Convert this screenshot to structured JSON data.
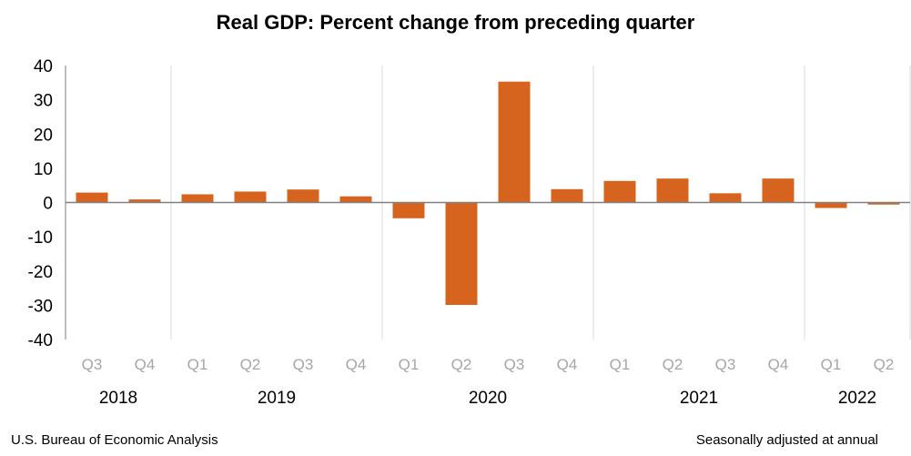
{
  "chart_data": {
    "type": "bar",
    "title": "Real GDP:  Percent change from preceding quarter",
    "categories": [
      "Q3",
      "Q4",
      "Q1",
      "Q2",
      "Q3",
      "Q4",
      "Q1",
      "Q2",
      "Q3",
      "Q4",
      "Q1",
      "Q2",
      "Q3",
      "Q4",
      "Q1",
      "Q2"
    ],
    "years": [
      "2018",
      "2019",
      "2020",
      "2021",
      "2022"
    ],
    "values": [
      2.9,
      0.9,
      2.4,
      3.2,
      3.8,
      1.8,
      -4.6,
      -29.9,
      35.3,
      3.9,
      6.3,
      7.0,
      2.7,
      7.0,
      -1.6,
      -0.6
    ],
    "ylim": [
      -40,
      40
    ],
    "yticks": [
      40,
      30,
      20,
      10,
      0,
      -10,
      -20,
      -30,
      -40
    ],
    "xlabel": "",
    "ylabel": "",
    "grid": "vertical year separators",
    "colors": {
      "bar": "#d7641e",
      "grid": "#d9d9d9",
      "axis": "#808080",
      "quarter_label": "#a6a6a6"
    }
  },
  "footer": {
    "source": "U.S. Bureau of Economic Analysis",
    "note": "Seasonally adjusted at annual"
  }
}
